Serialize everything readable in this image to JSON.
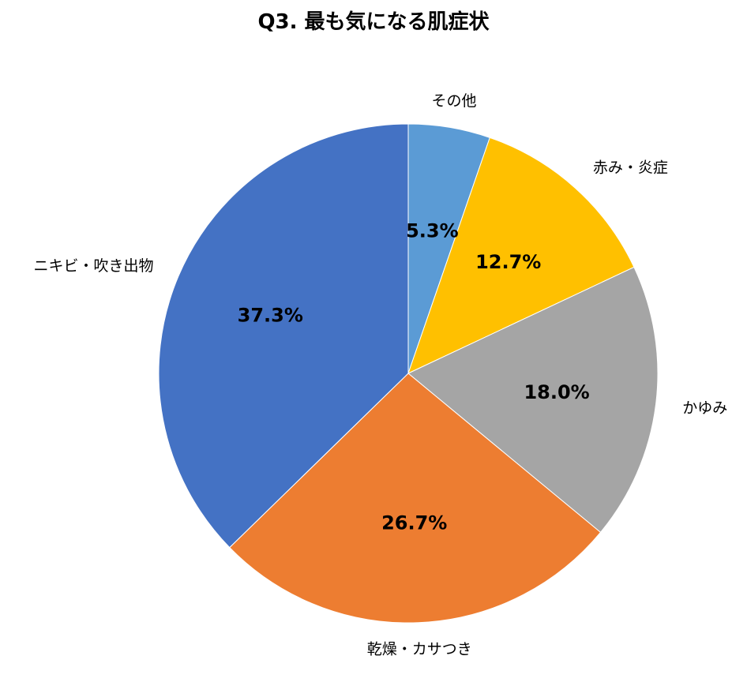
{
  "chart_data": {
    "type": "pie",
    "title": "Q3. 最も気になる肌症状",
    "start_angle_deg": 0,
    "direction": "clockwise",
    "legend": "none",
    "slices": [
      {
        "label": "その他",
        "value": 5.3,
        "value_label": "5.3%",
        "color": "#5B9BD5"
      },
      {
        "label": "赤み・炎症",
        "value": 12.7,
        "value_label": "12.7%",
        "color": "#FFC000"
      },
      {
        "label": "かゆみ",
        "value": 18.0,
        "value_label": "18.0%",
        "color": "#A5A5A5"
      },
      {
        "label": "乾燥・カサつき",
        "value": 26.7,
        "value_label": "26.7%",
        "color": "#ED7D31"
      },
      {
        "label": "ニキビ・吹き出物",
        "value": 37.3,
        "value_label": "37.3%",
        "color": "#4472C4"
      }
    ]
  }
}
